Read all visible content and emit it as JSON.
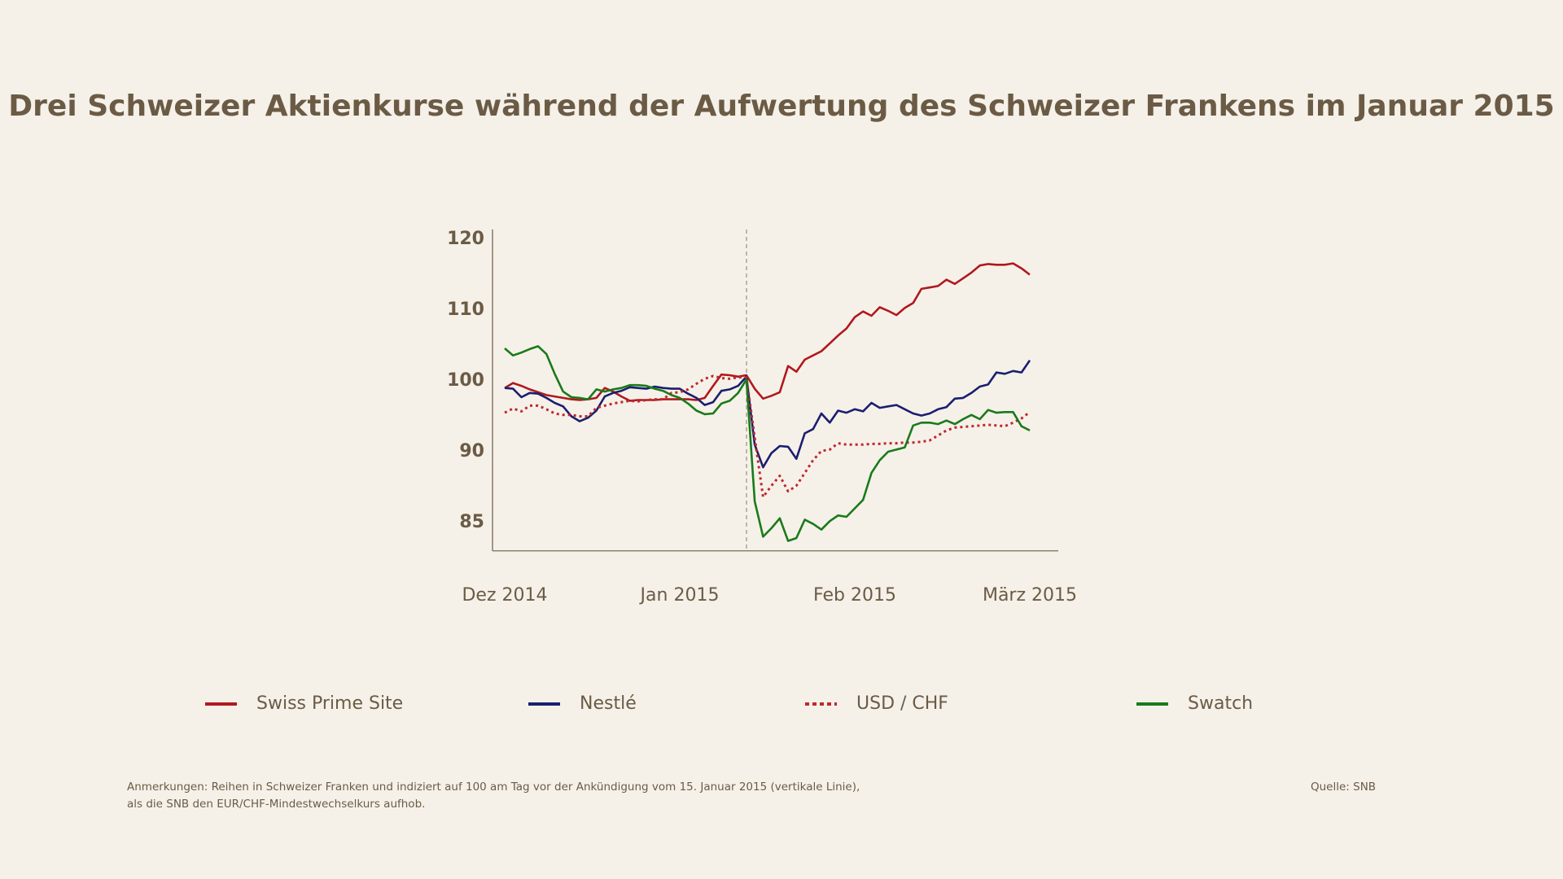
{
  "chart_data": {
    "type": "line",
    "title": "Drei Schweizer Aktienkurse während der Aufwertung des Schweizer Frankens im Januar 2015",
    "categories": [
      "Dez 2014",
      null,
      null,
      null,
      null,
      null,
      null,
      null,
      null,
      null,
      null,
      null,
      null,
      null,
      null,
      null,
      null,
      null,
      null,
      null,
      null,
      "Jan 2015",
      null,
      null,
      null,
      null,
      null,
      null,
      null,
      null,
      null,
      null,
      null,
      null,
      null,
      null,
      null,
      null,
      null,
      null,
      null,
      null,
      "Feb 2015",
      null,
      null,
      null,
      null,
      null,
      null,
      null,
      null,
      null,
      null,
      null,
      null,
      null,
      null,
      null,
      null,
      null,
      null,
      null,
      null,
      "März 2015"
    ],
    "series": [
      {
        "name": "Swiss Prime Site",
        "color": "#b0191e",
        "dash": "solid",
        "values": [
          99.0,
          99.7,
          99.3,
          98.8,
          98.4,
          98.0,
          97.8,
          97.6,
          97.4,
          97.3,
          97.4,
          97.6,
          99.0,
          98.5,
          97.8,
          97.2,
          97.3,
          97.3,
          97.3,
          97.4,
          97.4,
          97.4,
          97.4,
          97.3,
          97.6,
          99.3,
          100.9,
          100.8,
          100.6,
          100.8,
          98.9,
          97.5,
          97.9,
          98.4,
          102.1,
          101.3,
          103.0,
          103.6,
          104.2,
          105.3,
          106.4,
          107.4,
          109.0,
          109.8,
          109.2,
          110.4,
          109.9,
          109.3,
          110.3,
          111.0,
          113.0,
          113.2,
          113.4,
          114.3,
          113.7,
          114.5,
          115.3,
          116.3,
          116.5,
          116.4,
          116.4,
          116.6,
          115.9,
          115.0
        ]
      },
      {
        "name": "Nestlé",
        "color": "#1a1f6e",
        "dash": "solid",
        "values": [
          99.0,
          98.9,
          97.7,
          98.3,
          98.2,
          97.6,
          96.9,
          96.4,
          95.0,
          94.3,
          94.8,
          95.8,
          97.8,
          98.3,
          98.6,
          99.1,
          99.0,
          98.9,
          99.2,
          99.0,
          98.9,
          98.9,
          98.2,
          97.6,
          96.6,
          97.0,
          98.6,
          98.8,
          99.3,
          100.6,
          91.0,
          88.9,
          89.9,
          90.8,
          90.7,
          89.5,
          92.6,
          93.2,
          95.4,
          94.1,
          95.8,
          95.5,
          96.0,
          95.7,
          96.9,
          96.2,
          96.4,
          96.6,
          96.0,
          95.4,
          95.1,
          95.4,
          96.0,
          96.3,
          97.5,
          97.6,
          98.3,
          99.2,
          99.5,
          101.2,
          101.0,
          101.4,
          101.2,
          102.9
        ]
      },
      {
        "name": "USD / CHF",
        "color": "#c0282d",
        "dash": "dotted",
        "values": [
          95.5,
          96.1,
          95.7,
          96.5,
          96.5,
          96.0,
          95.4,
          95.2,
          95.2,
          95.0,
          95.0,
          96.2,
          96.5,
          96.8,
          97.0,
          97.2,
          97.1,
          97.3,
          97.4,
          97.4,
          98.3,
          98.4,
          98.8,
          99.6,
          100.3,
          100.7,
          100.4,
          100.3,
          100.5,
          100.5,
          92.0,
          86.8,
          87.6,
          88.3,
          87.2,
          87.6,
          88.5,
          89.4,
          90.1,
          90.3,
          91.2,
          91.0,
          91.0,
          91.0,
          91.1,
          91.1,
          91.2,
          91.2,
          91.3,
          91.3,
          91.4,
          91.6,
          92.3,
          93.0,
          93.4,
          93.5,
          93.6,
          93.7,
          93.8,
          93.7,
          93.6,
          94.1,
          94.7,
          95.6
        ]
      },
      {
        "name": "Swatch",
        "color": "#1a7a1a",
        "dash": "solid",
        "values": [
          104.6,
          103.6,
          104.0,
          104.5,
          104.9,
          103.8,
          101.0,
          98.5,
          97.7,
          97.6,
          97.4,
          98.8,
          98.5,
          98.8,
          99.0,
          99.4,
          99.4,
          99.3,
          98.9,
          98.6,
          98.0,
          97.6,
          96.8,
          95.8,
          95.3,
          95.4,
          96.8,
          97.2,
          98.3,
          100.2,
          86.5,
          84.0,
          84.6,
          85.3,
          83.7,
          83.9,
          85.2,
          84.9,
          84.5,
          85.1,
          85.5,
          85.4,
          86.0,
          86.6,
          88.5,
          89.4,
          90.0,
          90.3,
          90.6,
          93.7,
          94.1,
          94.1,
          93.9,
          94.4,
          93.9,
          94.6,
          95.2,
          94.6,
          95.9,
          95.5,
          95.6,
          95.6,
          93.6,
          93.0
        ]
      }
    ],
    "ylim": [
      83,
      121.4
    ],
    "yticks": [
      85,
      90,
      100,
      110,
      120
    ],
    "legend": "bottom",
    "note": "Anmerkungen: Reihen in Schweizer Franken und indiziert auf 100 am Tag vor der Ankündigung vom 15. Januar 2015 (vertikale Linie), als die SNB den EUR/CHF-Mindestwechselkurs aufhob.",
    "source": "Quelle: SNB"
  }
}
